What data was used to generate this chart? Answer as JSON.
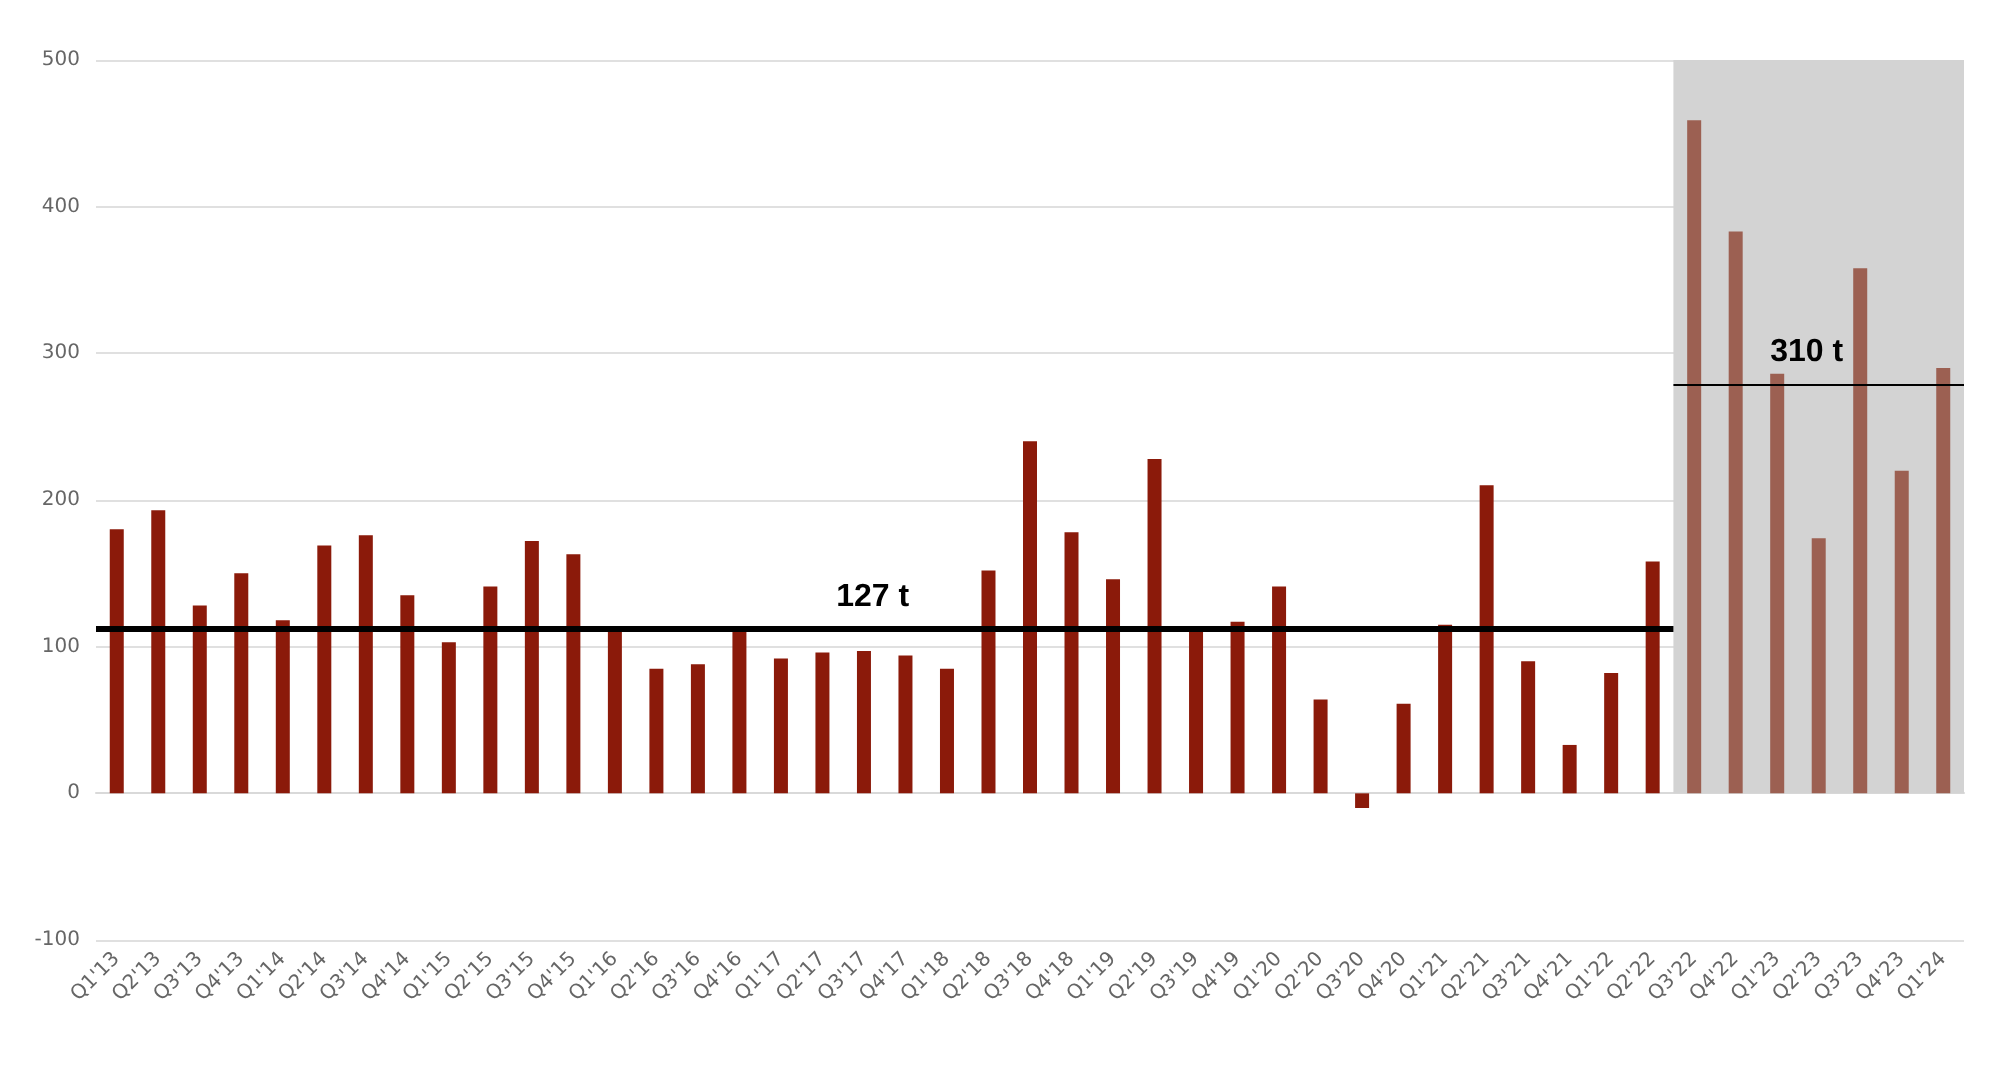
{
  "chart_data": {
    "type": "bar",
    "categories": [
      "Q1'13",
      "Q2'13",
      "Q3'13",
      "Q4'13",
      "Q1'14",
      "Q2'14",
      "Q3'14",
      "Q4'14",
      "Q1'15",
      "Q2'15",
      "Q3'15",
      "Q4'15",
      "Q1'16",
      "Q2'16",
      "Q3'16",
      "Q4'16",
      "Q1'17",
      "Q2'17",
      "Q3'17",
      "Q4'17",
      "Q1'18",
      "Q2'18",
      "Q3'18",
      "Q4'18",
      "Q1'19",
      "Q2'19",
      "Q3'19",
      "Q4'19",
      "Q1'20",
      "Q2'20",
      "Q3'20",
      "Q4'20",
      "Q1'21",
      "Q2'21",
      "Q3'21",
      "Q4'21",
      "Q1'22",
      "Q2'22",
      "Q3'22",
      "Q4'22",
      "Q1'23",
      "Q2'23",
      "Q3'23",
      "Q4'23",
      "Q1'24"
    ],
    "values": [
      180,
      193,
      128,
      150,
      118,
      169,
      176,
      135,
      103,
      141,
      172,
      163,
      112,
      85,
      88,
      112,
      92,
      96,
      97,
      94,
      85,
      152,
      240,
      178,
      146,
      228,
      112,
      117,
      141,
      64,
      -10,
      61,
      115,
      210,
      90,
      33,
      82,
      158,
      459,
      383,
      286,
      174,
      358,
      220,
      290
    ],
    "colors": [
      "#8b1a0a",
      "#8b1a0a",
      "#8b1a0a",
      "#8b1a0a",
      "#8b1a0a",
      "#8b1a0a",
      "#8b1a0a",
      "#8b1a0a",
      "#8b1a0a",
      "#8b1a0a",
      "#8b1a0a",
      "#8b1a0a",
      "#8b1a0a",
      "#8b1a0a",
      "#8b1a0a",
      "#8b1a0a",
      "#8b1a0a",
      "#8b1a0a",
      "#8b1a0a",
      "#8b1a0a",
      "#8b1a0a",
      "#8b1a0a",
      "#8b1a0a",
      "#8b1a0a",
      "#8b1a0a",
      "#8b1a0a",
      "#8b1a0a",
      "#8b1a0a",
      "#8b1a0a",
      "#8b1a0a",
      "#8b1a0a",
      "#8b1a0a",
      "#8b1a0a",
      "#8b1a0a",
      "#8b1a0a",
      "#8b1a0a",
      "#8b1a0a",
      "#8b1a0a",
      "#9c6052",
      "#9c6052",
      "#9c6052",
      "#9c6052",
      "#9c6052",
      "#9c6052",
      "#9c6052"
    ],
    "ylim": [
      -100,
      500
    ],
    "yticks": [
      -100,
      0,
      100,
      200,
      300,
      400,
      500
    ],
    "grid": "y",
    "bands": [
      {
        "axis": "x",
        "from": "Q3'22",
        "to": "Q1'24",
        "color": "#d3d3d3"
      }
    ],
    "ref_lines": [
      {
        "axis": "y",
        "value": 112,
        "label": "127 t",
        "color": "#000000"
      },
      {
        "axis": "y",
        "value": 279,
        "label": "310 t",
        "color": "#000000"
      }
    ]
  }
}
